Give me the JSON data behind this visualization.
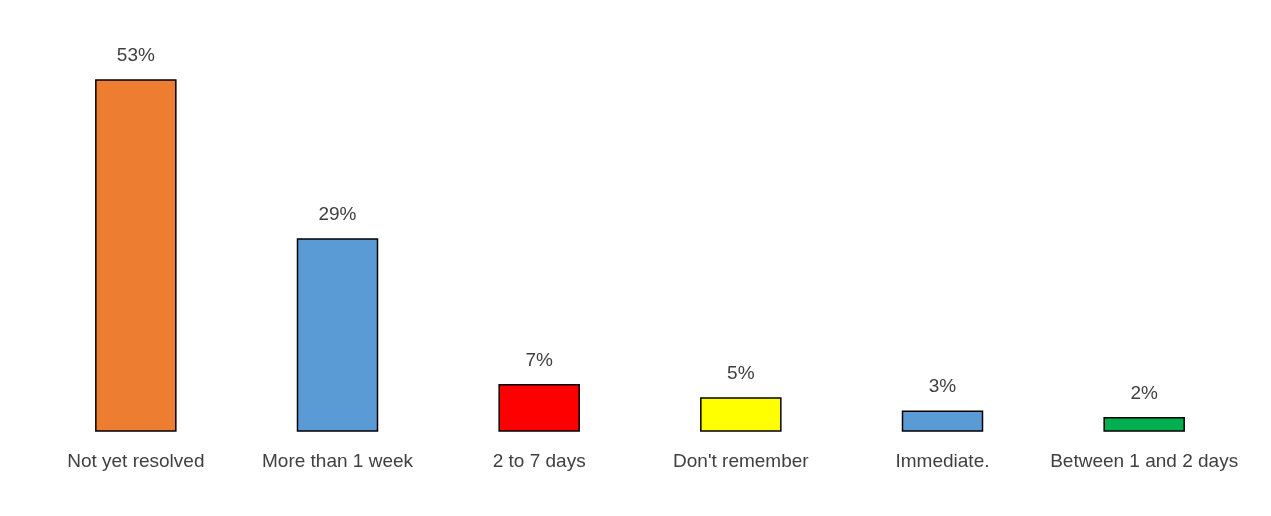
{
  "chart_data": {
    "type": "bar",
    "categories": [
      "Not yet resolved",
      "More than 1 week",
      "2 to 7 days",
      "Don't remember",
      "Immediate.",
      "Between 1 and 2 days"
    ],
    "values": [
      53,
      29,
      7,
      5,
      3,
      2
    ],
    "colors": [
      "#ed7d31",
      "#5b9bd5",
      "#ff0000",
      "#ffff00",
      "#5b9bd5",
      "#00b050"
    ],
    "value_labels": [
      "53%",
      "29%",
      "7%",
      "5%",
      "3%",
      "2%"
    ]
  }
}
